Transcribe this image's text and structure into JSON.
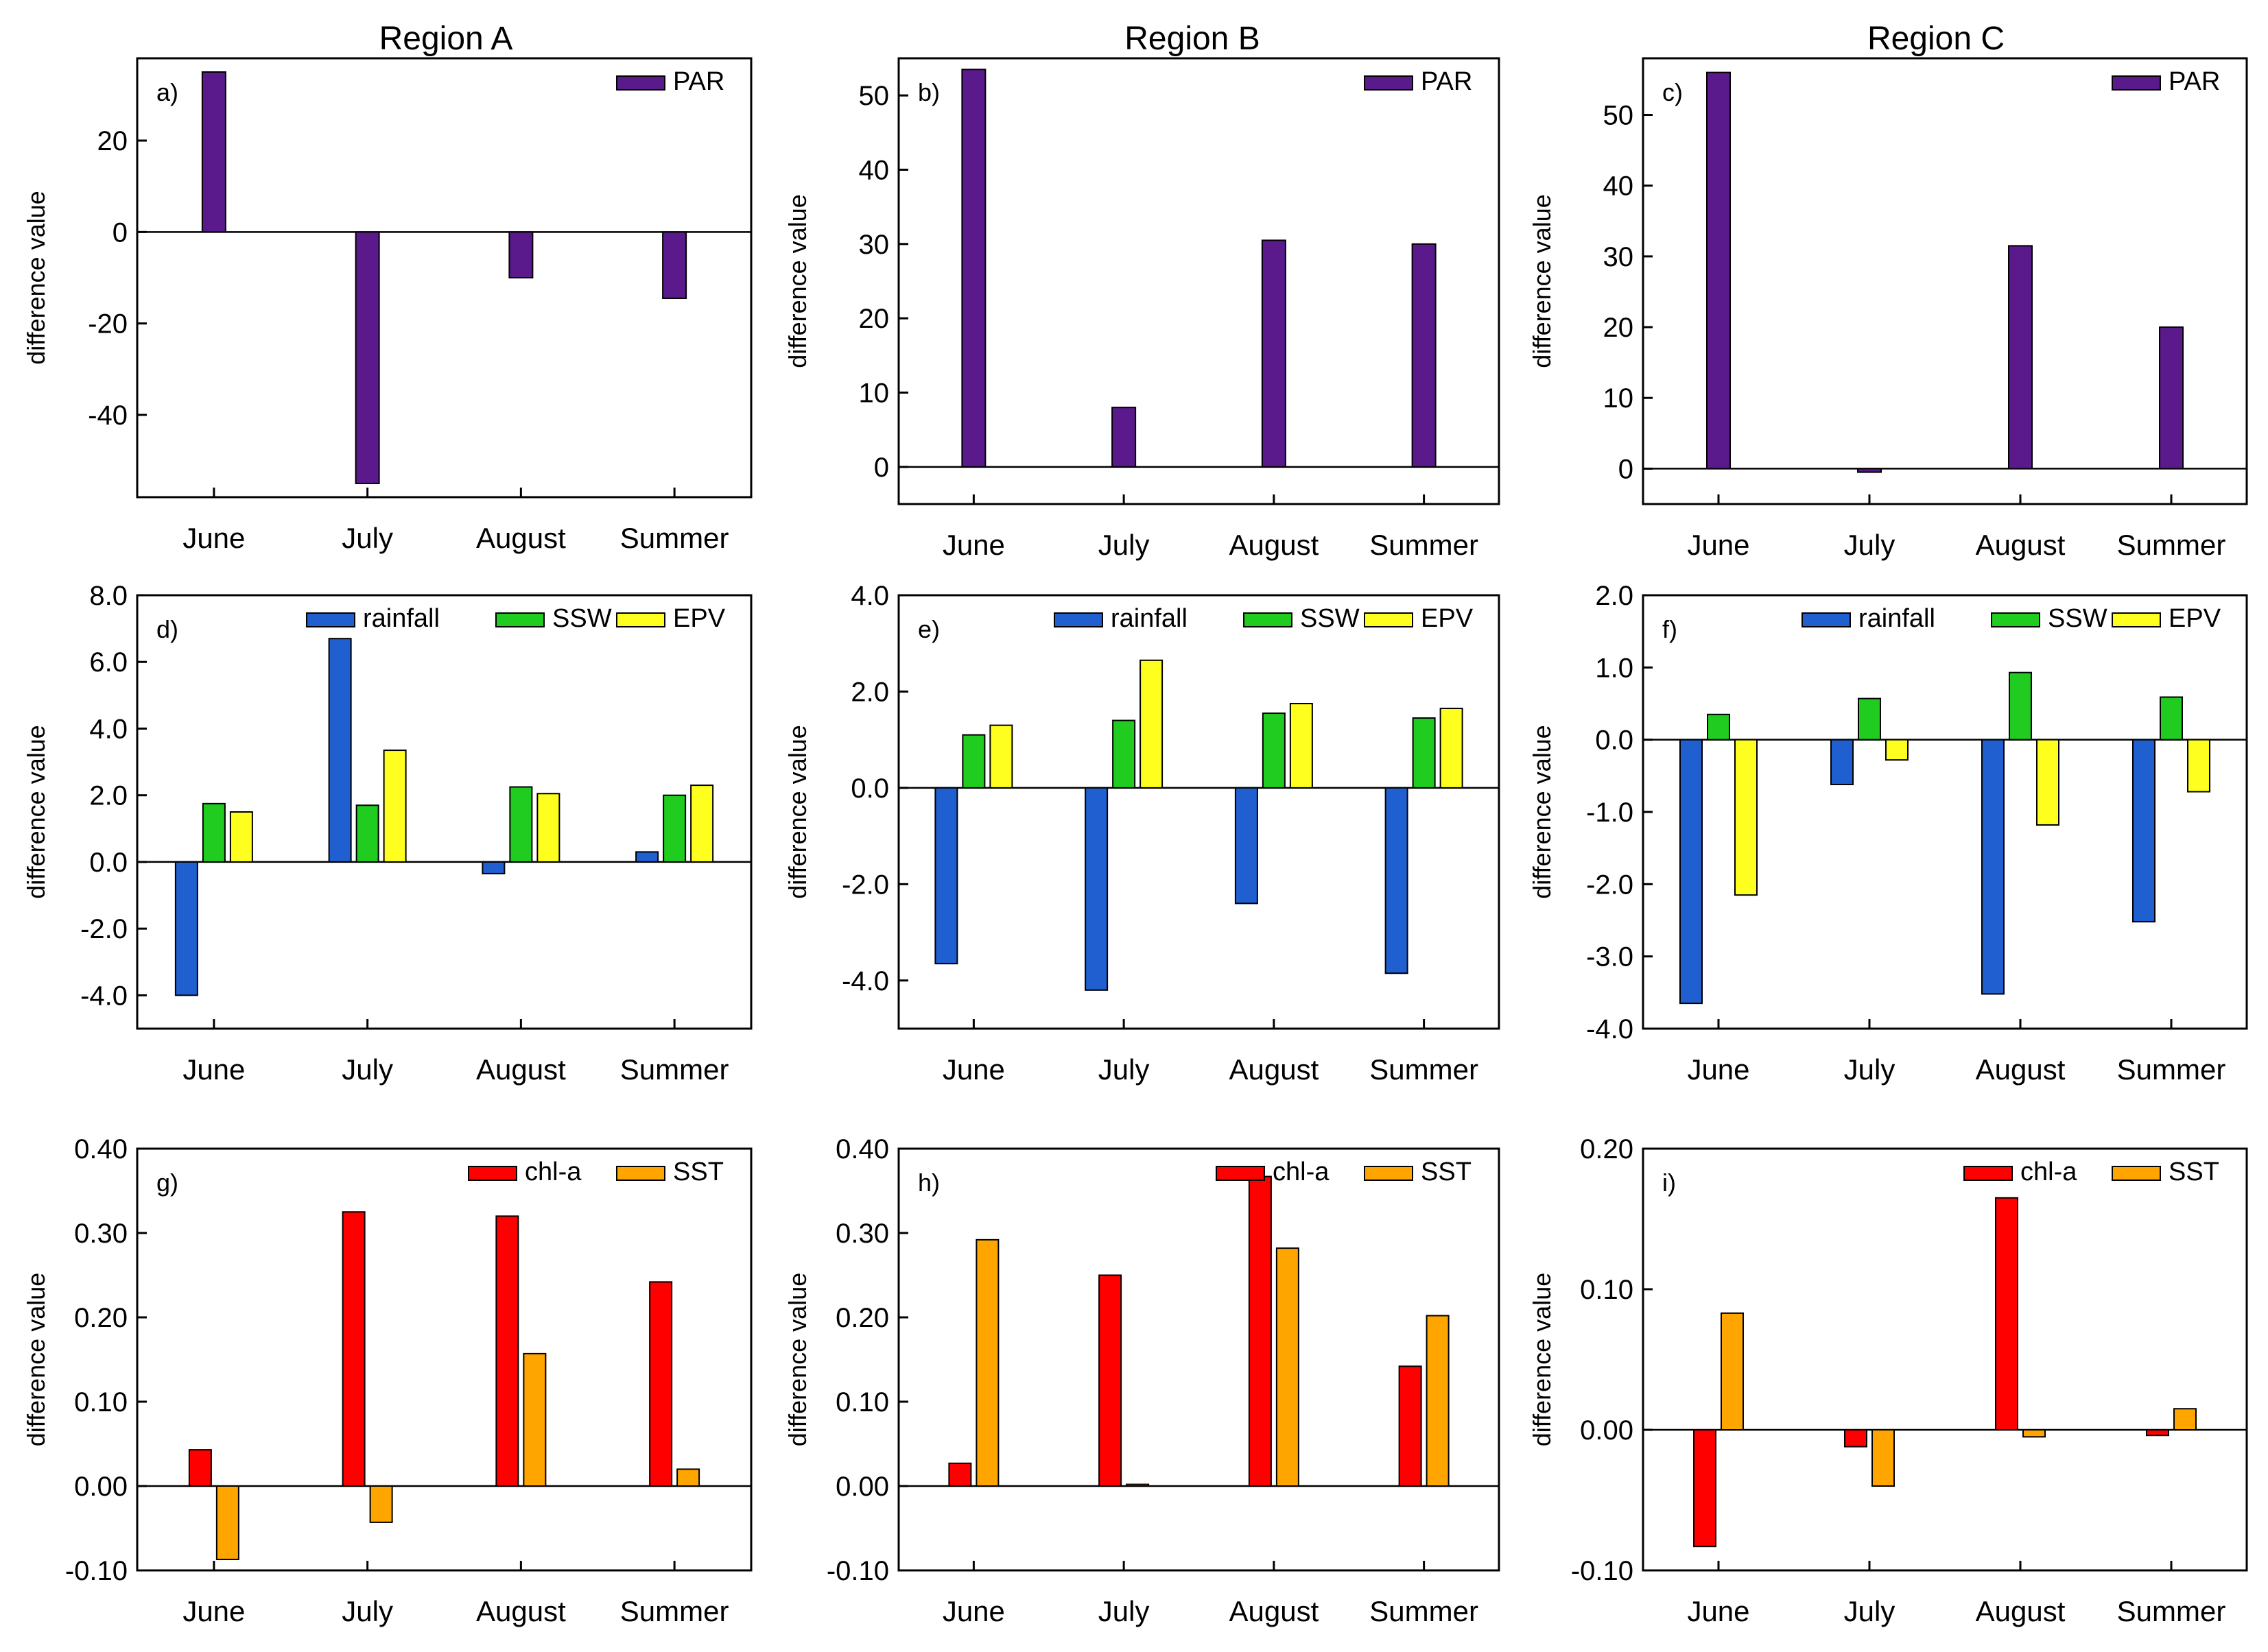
{
  "figure": {
    "region_titles": [
      "Region A",
      "Region B",
      "Region C"
    ]
  },
  "colors": {
    "PAR": "#5b1a8b",
    "rainfall": "#1f5fcf",
    "SSW": "#1fcc1f",
    "EPV": "#ffff1f",
    "chl-a": "#ff0000",
    "SST": "#ffa500"
  },
  "chart_data": [
    {
      "type": "bar",
      "panel": "a)",
      "title": "Region A",
      "ylabel": "difference value",
      "categories": [
        "June",
        "July",
        "August",
        "Summer"
      ],
      "ylim": [
        -58,
        38
      ],
      "yticks": [
        20,
        0,
        -20,
        -40
      ],
      "ytick_labels": [
        "20",
        "0",
        "-20",
        "-40"
      ],
      "series": [
        {
          "name": "PAR",
          "values": [
            35,
            -55,
            -10,
            -14.5
          ]
        }
      ]
    },
    {
      "type": "bar",
      "panel": "b)",
      "title": "Region B",
      "ylabel": "difference value",
      "categories": [
        "June",
        "July",
        "August",
        "Summer"
      ],
      "ylim": [
        -5,
        55
      ],
      "yticks": [
        50,
        40,
        30,
        20,
        10,
        0
      ],
      "ytick_labels": [
        "50",
        "40",
        "30",
        "20",
        "10",
        "0"
      ],
      "series": [
        {
          "name": "PAR",
          "values": [
            53.5,
            8,
            30.5,
            30
          ]
        }
      ]
    },
    {
      "type": "bar",
      "panel": "c)",
      "title": "Region C",
      "ylabel": "difference value",
      "categories": [
        "June",
        "July",
        "August",
        "Summer"
      ],
      "ylim": [
        -5,
        58
      ],
      "yticks": [
        50,
        40,
        30,
        20,
        10,
        0
      ],
      "ytick_labels": [
        "50",
        "40",
        "30",
        "20",
        "10",
        "0"
      ],
      "series": [
        {
          "name": "PAR",
          "values": [
            56,
            -0.5,
            31.5,
            20
          ]
        }
      ]
    },
    {
      "type": "bar",
      "panel": "d)",
      "ylabel": "difference value",
      "categories": [
        "June",
        "July",
        "August",
        "Summer"
      ],
      "ylim": [
        -5,
        8
      ],
      "yticks": [
        8,
        6,
        4,
        2,
        0,
        -2,
        -4
      ],
      "ytick_labels": [
        "8.0",
        "6.0",
        "4.0",
        "2.0",
        "0.0",
        "-2.0",
        "-4.0"
      ],
      "series": [
        {
          "name": "rainfall",
          "values": [
            -4.0,
            6.7,
            -0.35,
            0.3
          ]
        },
        {
          "name": "SSW",
          "values": [
            1.75,
            1.7,
            2.25,
            2.0
          ]
        },
        {
          "name": "EPV",
          "values": [
            1.5,
            3.35,
            2.05,
            2.3
          ]
        }
      ]
    },
    {
      "type": "bar",
      "panel": "e)",
      "ylabel": "difference value",
      "categories": [
        "June",
        "July",
        "August",
        "Summer"
      ],
      "ylim": [
        -5,
        4
      ],
      "yticks": [
        4,
        2,
        0,
        -2,
        -4
      ],
      "ytick_labels": [
        "4.0",
        "2.0",
        "0.0",
        "-2.0",
        "-4.0"
      ],
      "series": [
        {
          "name": "rainfall",
          "values": [
            -3.65,
            -4.2,
            -2.4,
            -3.85
          ]
        },
        {
          "name": "SSW",
          "values": [
            1.1,
            1.4,
            1.55,
            1.45
          ]
        },
        {
          "name": "EPV",
          "values": [
            1.3,
            2.65,
            1.75,
            1.65
          ]
        }
      ]
    },
    {
      "type": "bar",
      "panel": "f)",
      "ylabel": "difference value",
      "categories": [
        "June",
        "July",
        "August",
        "Summer"
      ],
      "ylim": [
        -4,
        2
      ],
      "yticks": [
        2,
        1,
        0,
        -1,
        -2,
        -3,
        -4
      ],
      "ytick_labels": [
        "2.0",
        "1.0",
        "0.0",
        "-1.0",
        "-2.0",
        "-3.0",
        "-4.0"
      ],
      "series": [
        {
          "name": "rainfall",
          "values": [
            -3.65,
            -0.62,
            -3.52,
            -2.52
          ]
        },
        {
          "name": "SSW",
          "values": [
            0.35,
            0.57,
            0.93,
            0.59
          ]
        },
        {
          "name": "EPV",
          "values": [
            -2.15,
            -0.28,
            -1.18,
            -0.72
          ]
        }
      ]
    },
    {
      "type": "bar",
      "panel": "g)",
      "ylabel": "difference value",
      "categories": [
        "June",
        "July",
        "August",
        "Summer"
      ],
      "ylim": [
        -0.1,
        0.4
      ],
      "yticks": [
        0.4,
        0.3,
        0.2,
        0.1,
        0,
        -0.1
      ],
      "ytick_labels": [
        "0.40",
        "0.30",
        "0.20",
        "0.10",
        "0.00",
        "-0.10"
      ],
      "series": [
        {
          "name": "chl-a",
          "values": [
            0.043,
            0.325,
            0.32,
            0.242
          ]
        },
        {
          "name": "SST",
          "values": [
            -0.087,
            -0.043,
            0.157,
            0.02
          ]
        }
      ]
    },
    {
      "type": "bar",
      "panel": "h)",
      "ylabel": "difference value",
      "categories": [
        "June",
        "July",
        "August",
        "Summer"
      ],
      "ylim": [
        -0.1,
        0.4
      ],
      "yticks": [
        0.4,
        0.3,
        0.2,
        0.1,
        0,
        -0.1
      ],
      "ytick_labels": [
        "0.40",
        "0.30",
        "0.20",
        "0.10",
        "0.00",
        "-0.10"
      ],
      "series": [
        {
          "name": "chl-a",
          "values": [
            0.027,
            0.25,
            0.367,
            0.142
          ]
        },
        {
          "name": "SST",
          "values": [
            0.292,
            0.002,
            0.282,
            0.202
          ]
        }
      ]
    },
    {
      "type": "bar",
      "panel": "i)",
      "ylabel": "difference value",
      "categories": [
        "June",
        "July",
        "August",
        "Summer"
      ],
      "ylim": [
        -0.1,
        0.2
      ],
      "yticks": [
        0.2,
        0.1,
        0,
        -0.1
      ],
      "ytick_labels": [
        "0.20",
        "0.10",
        "0.00",
        "-0.10"
      ],
      "series": [
        {
          "name": "chl-a",
          "values": [
            -0.083,
            -0.012,
            0.165,
            -0.004
          ]
        },
        {
          "name": "SST",
          "values": [
            0.083,
            -0.04,
            -0.005,
            0.015
          ]
        }
      ]
    }
  ]
}
